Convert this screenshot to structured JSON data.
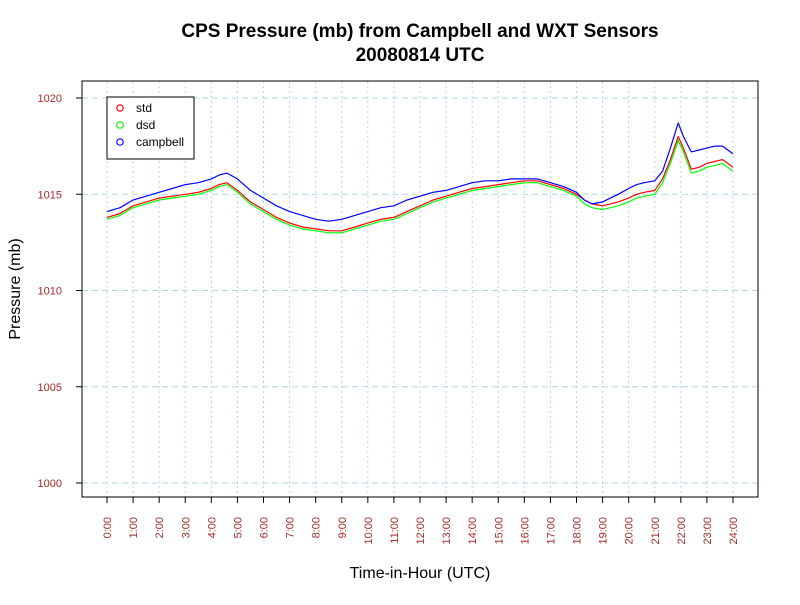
{
  "chart_data": {
    "type": "line",
    "title": "CPS Pressure (mb) from Campbell and WXT Sensors",
    "subtitle": "20080814  UTC",
    "xlabel": "Time-in-Hour (UTC)",
    "ylabel": "Pressure (mb)",
    "xlim": [
      0,
      24
    ],
    "ylim": [
      1000,
      1020
    ],
    "yticks": [
      1000,
      1005,
      1010,
      1015,
      1020
    ],
    "x_tick_labels": [
      "0:00",
      "1:00",
      "2:00",
      "3:00",
      "4:00",
      "5:00",
      "6:00",
      "7:00",
      "8:00",
      "9:00",
      "10:00",
      "11:00",
      "12:00",
      "13:00",
      "14:00",
      "15:00",
      "16:00",
      "17:00",
      "18:00",
      "19:00",
      "20:00",
      "21:00",
      "22:00",
      "23:00",
      "24:00"
    ],
    "grid": true,
    "legend_position": "top-left",
    "x": [
      0,
      0.5,
      1,
      1.5,
      2,
      2.5,
      3,
      3.5,
      4,
      4.3,
      4.6,
      5,
      5.5,
      6,
      6.5,
      7,
      7.5,
      8,
      8.5,
      9,
      9.5,
      10,
      10.5,
      11,
      11.5,
      12,
      12.5,
      13,
      13.5,
      14,
      14.5,
      15,
      15.5,
      16,
      16.5,
      17,
      17.5,
      18,
      18.3,
      18.6,
      19,
      19.3,
      19.6,
      20,
      20.3,
      20.6,
      21,
      21.3,
      21.6,
      21.9,
      22.1,
      22.4,
      22.7,
      23,
      23.3,
      23.6,
      23.8,
      24
    ],
    "series": [
      {
        "name": "std",
        "color": "#ff0000",
        "values": [
          1013.8,
          1014.0,
          1014.4,
          1014.6,
          1014.8,
          1014.9,
          1015.0,
          1015.1,
          1015.3,
          1015.5,
          1015.6,
          1015.2,
          1014.6,
          1014.2,
          1013.8,
          1013.5,
          1013.3,
          1013.2,
          1013.1,
          1013.1,
          1013.3,
          1013.5,
          1013.7,
          1013.8,
          1014.1,
          1014.4,
          1014.7,
          1014.9,
          1015.1,
          1015.3,
          1015.4,
          1015.5,
          1015.6,
          1015.7,
          1015.7,
          1015.5,
          1015.3,
          1015.0,
          1014.7,
          1014.5,
          1014.4,
          1014.5,
          1014.6,
          1014.8,
          1015.0,
          1015.1,
          1015.2,
          1015.8,
          1016.8,
          1018.0,
          1017.4,
          1016.3,
          1016.4,
          1016.6,
          1016.7,
          1016.8,
          1016.6,
          1016.4
        ]
      },
      {
        "name": "dsd",
        "color": "#00ff00",
        "values": [
          1013.7,
          1013.9,
          1014.3,
          1014.5,
          1014.7,
          1014.8,
          1014.9,
          1015.0,
          1015.2,
          1015.4,
          1015.5,
          1015.1,
          1014.5,
          1014.1,
          1013.7,
          1013.4,
          1013.2,
          1013.1,
          1013.0,
          1013.0,
          1013.2,
          1013.4,
          1013.6,
          1013.7,
          1014.0,
          1014.3,
          1014.6,
          1014.8,
          1015.0,
          1015.2,
          1015.3,
          1015.4,
          1015.5,
          1015.6,
          1015.6,
          1015.4,
          1015.2,
          1014.9,
          1014.5,
          1014.3,
          1014.2,
          1014.3,
          1014.4,
          1014.6,
          1014.8,
          1014.9,
          1015.0,
          1015.6,
          1016.6,
          1017.8,
          1017.2,
          1016.1,
          1016.2,
          1016.4,
          1016.5,
          1016.6,
          1016.4,
          1016.2
        ]
      },
      {
        "name": "campbell",
        "color": "#0000ff",
        "values": [
          1014.1,
          1014.3,
          1014.7,
          1014.9,
          1015.1,
          1015.3,
          1015.5,
          1015.6,
          1015.8,
          1016.0,
          1016.1,
          1015.8,
          1015.2,
          1014.8,
          1014.4,
          1014.1,
          1013.9,
          1013.7,
          1013.6,
          1013.7,
          1013.9,
          1014.1,
          1014.3,
          1014.4,
          1014.7,
          1014.9,
          1015.1,
          1015.2,
          1015.4,
          1015.6,
          1015.7,
          1015.7,
          1015.8,
          1015.8,
          1015.8,
          1015.6,
          1015.4,
          1015.1,
          1014.7,
          1014.5,
          1014.6,
          1014.8,
          1015.0,
          1015.3,
          1015.5,
          1015.6,
          1015.7,
          1016.2,
          1017.4,
          1018.7,
          1018.0,
          1017.2,
          1017.3,
          1017.4,
          1017.5,
          1017.5,
          1017.3,
          1017.1
        ]
      }
    ]
  }
}
